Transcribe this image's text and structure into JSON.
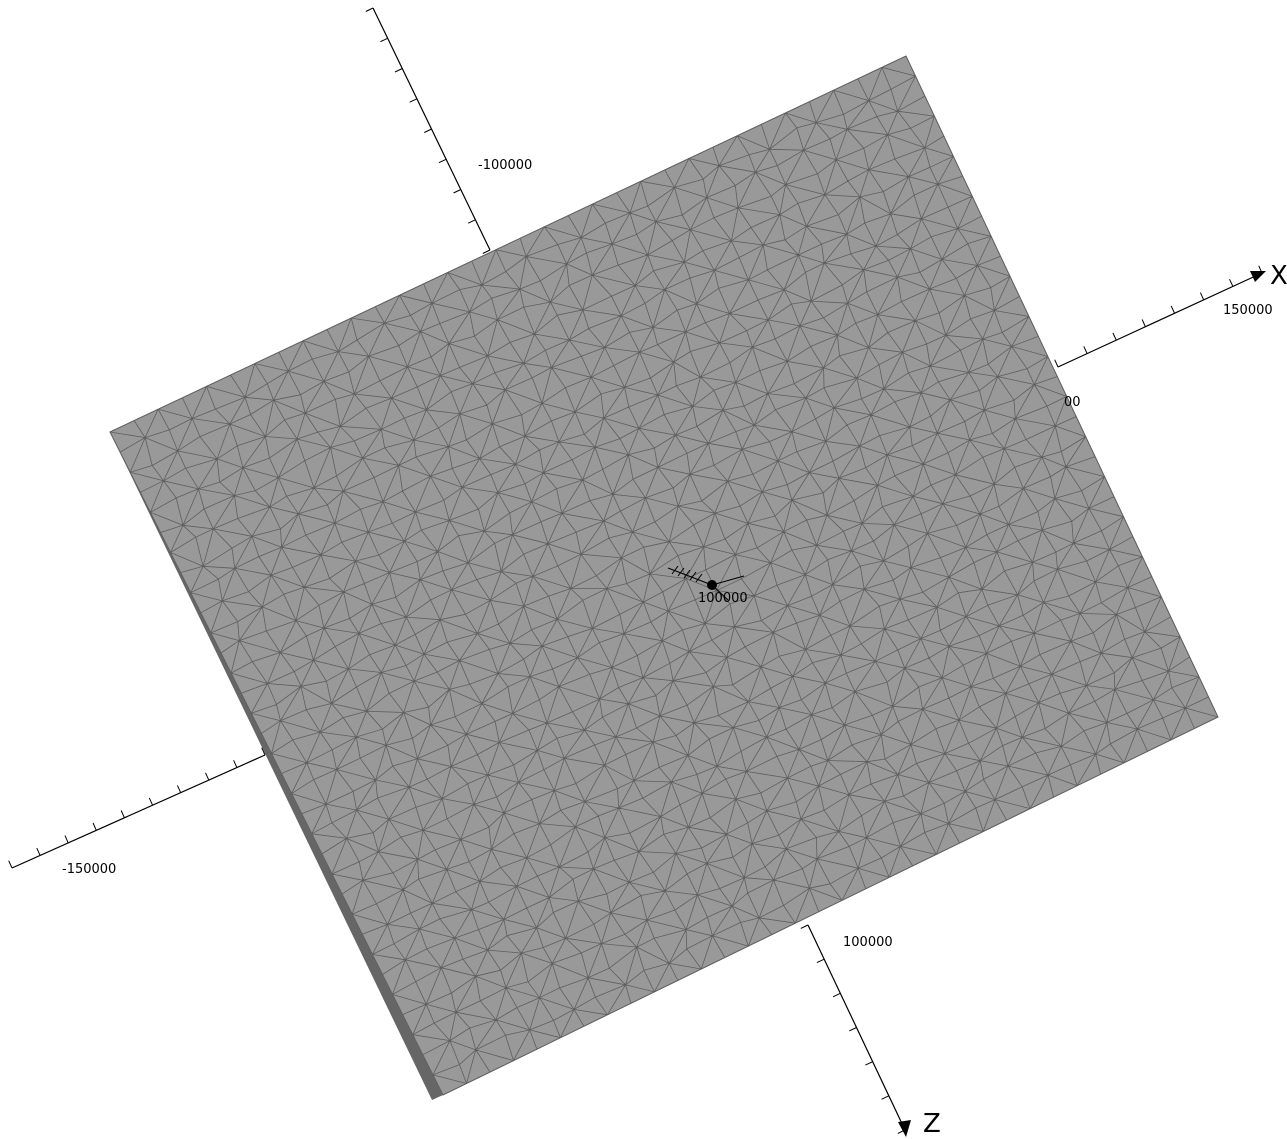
{
  "scene": {
    "background_color": "#ffffff",
    "mesh": {
      "face_color": "#999999",
      "edge_color": "#5f5f5f",
      "side_color": "#666666",
      "element_type": "triangle"
    },
    "axes": {
      "line_color": "#000000",
      "x": {
        "name": "X",
        "tick_labels": [
          "150000",
          "00"
        ]
      },
      "y": {
        "name": "",
        "tick_labels": [
          "-100000",
          "100000"
        ]
      },
      "z": {
        "name": "Z",
        "tick_labels": [
          "-150000",
          "100000"
        ]
      }
    },
    "origin_marker": {
      "icon": "origin-dot-icon",
      "color": "#000000"
    }
  }
}
